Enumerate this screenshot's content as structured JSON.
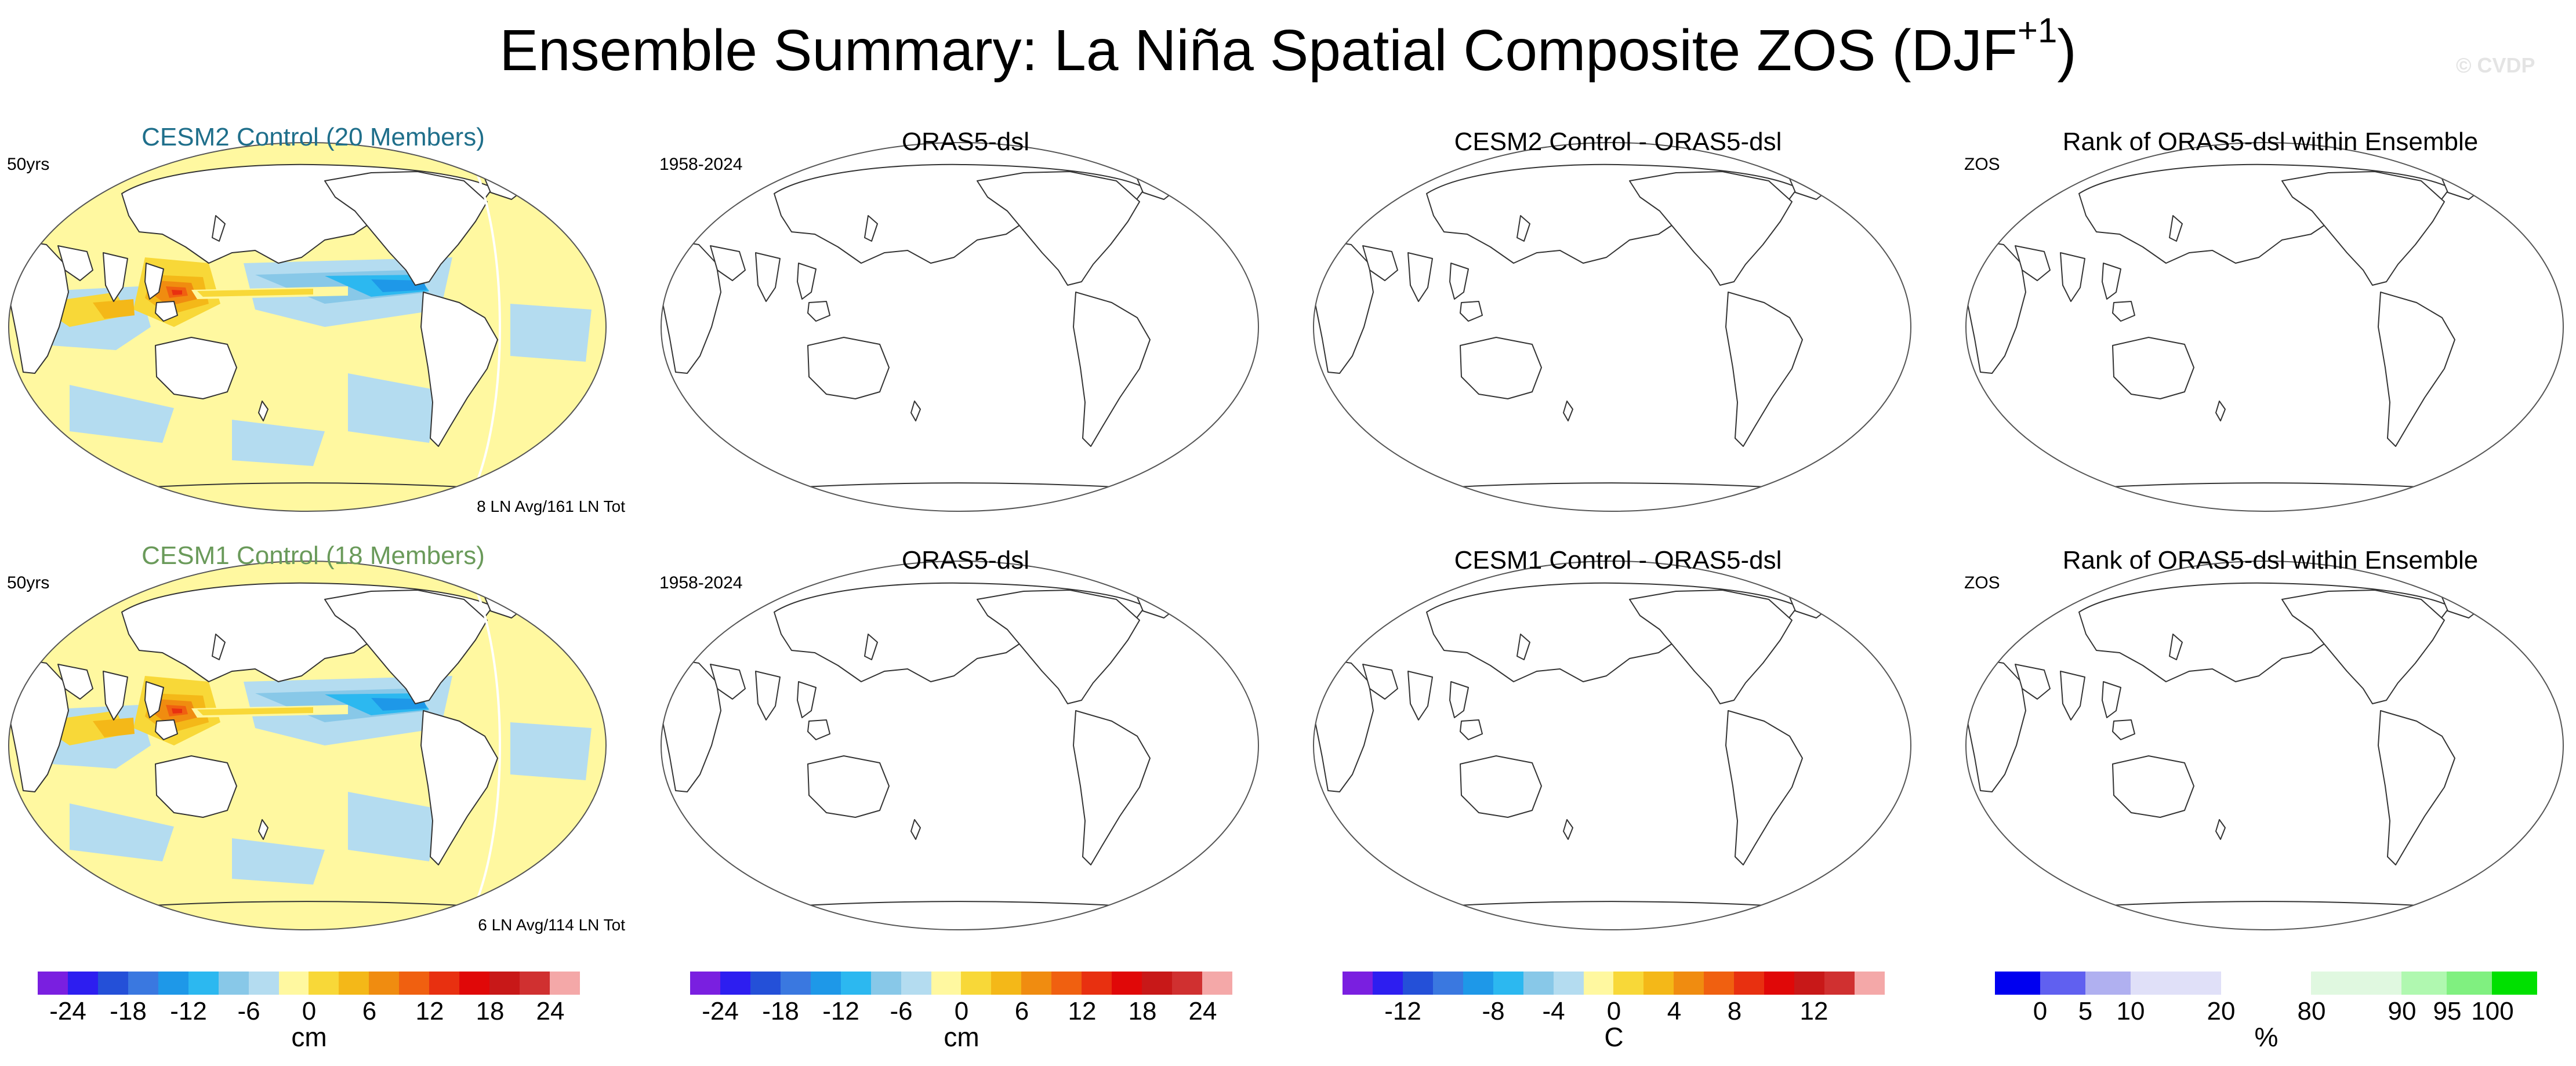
{
  "figure": {
    "title_main": "Ensemble Summary: La Niña Spatial Composite ZOS (DJF",
    "title_sup": "+1",
    "title_close": ")",
    "watermark": "© CVDP"
  },
  "rows": [
    {
      "panels": [
        {
          "title": "CESM2 Control (20 Members)",
          "title_color": "#1f6f8b",
          "left": "50yrs",
          "br": "8 LN Avg/161 LN Tot",
          "filled": true
        },
        {
          "title": "ORAS5-dsl",
          "title_color": "#000000",
          "left": "1958-2024",
          "br": "",
          "filled": false
        },
        {
          "title": "CESM2 Control - ORAS5-dsl",
          "title_color": "#000000",
          "left": "",
          "br": "",
          "filled": false
        },
        {
          "title": "Rank of ORAS5-dsl within Ensemble",
          "title_color": "#000000",
          "left": "ZOS",
          "br": "",
          "filled": false
        }
      ]
    },
    {
      "panels": [
        {
          "title": "CESM1 Control (18 Members)",
          "title_color": "#6a9a5a",
          "left": "50yrs",
          "br": "6 LN Avg/114 LN Tot",
          "filled": true
        },
        {
          "title": "ORAS5-dsl",
          "title_color": "#000000",
          "left": "1958-2024",
          "br": "",
          "filled": false
        },
        {
          "title": "CESM1 Control - ORAS5-dsl",
          "title_color": "#000000",
          "left": "",
          "br": "",
          "filled": false
        },
        {
          "title": "Rank of ORAS5-dsl within Ensemble",
          "title_color": "#000000",
          "left": "ZOS",
          "br": "",
          "filled": false
        }
      ]
    }
  ],
  "colorbars": [
    {
      "colors": [
        "#7a1fe0",
        "#2d1ef0",
        "#2450d8",
        "#3a78e0",
        "#1e98e8",
        "#2cb8f0",
        "#88c8e8",
        "#b4dcf0",
        "#fff8a0",
        "#f8d838",
        "#f4b818",
        "#f08c10",
        "#f06010",
        "#e83010",
        "#e00808",
        "#c81818",
        "#d03030",
        "#f4a8a8"
      ],
      "ticks": [
        "-24",
        "-18",
        "-12",
        "-6",
        "0",
        "6",
        "12",
        "18",
        "24"
      ],
      "unit": "cm"
    },
    {
      "colors": [
        "#7a1fe0",
        "#2d1ef0",
        "#2450d8",
        "#3a78e0",
        "#1e98e8",
        "#2cb8f0",
        "#88c8e8",
        "#b4dcf0",
        "#fff8a0",
        "#f8d838",
        "#f4b818",
        "#f08c10",
        "#f06010",
        "#e83010",
        "#e00808",
        "#c81818",
        "#d03030",
        "#f4a8a8"
      ],
      "ticks": [
        "-24",
        "-18",
        "-12",
        "-6",
        "0",
        "6",
        "12",
        "18",
        "24"
      ],
      "unit": "cm"
    },
    {
      "colors": [
        "#7a1fe0",
        "#2d1ef0",
        "#2450d8",
        "#3a78e0",
        "#1e98e8",
        "#2cb8f0",
        "#88c8e8",
        "#b4dcf0",
        "#fff8a0",
        "#f8d838",
        "#f4b818",
        "#f08c10",
        "#f06010",
        "#e83010",
        "#e00808",
        "#c81818",
        "#d03030",
        "#f4a8a8"
      ],
      "ticks": [
        "-12",
        "-8",
        "-4",
        "0",
        "4",
        "8",
        "12"
      ],
      "unit": "C"
    },
    {
      "colors": [
        "#0000f0",
        "#6060f0",
        "#b0b0f0",
        "#e0e0f8",
        "#e0e0f8",
        "#ffffff",
        "#ffffff",
        "#e0f8e0",
        "#e0f8e0",
        "#b0f8b0",
        "#80f080",
        "#00e000"
      ],
      "ticks": [
        "0",
        "5",
        "10",
        "20",
        "80",
        "90",
        "95",
        "100"
      ],
      "unit": "%"
    }
  ],
  "colors": {
    "land": "#ffffff",
    "ocean_positive": "#fff8a0",
    "ocean_negative": "#b4dcf0",
    "coast": "#333333"
  }
}
